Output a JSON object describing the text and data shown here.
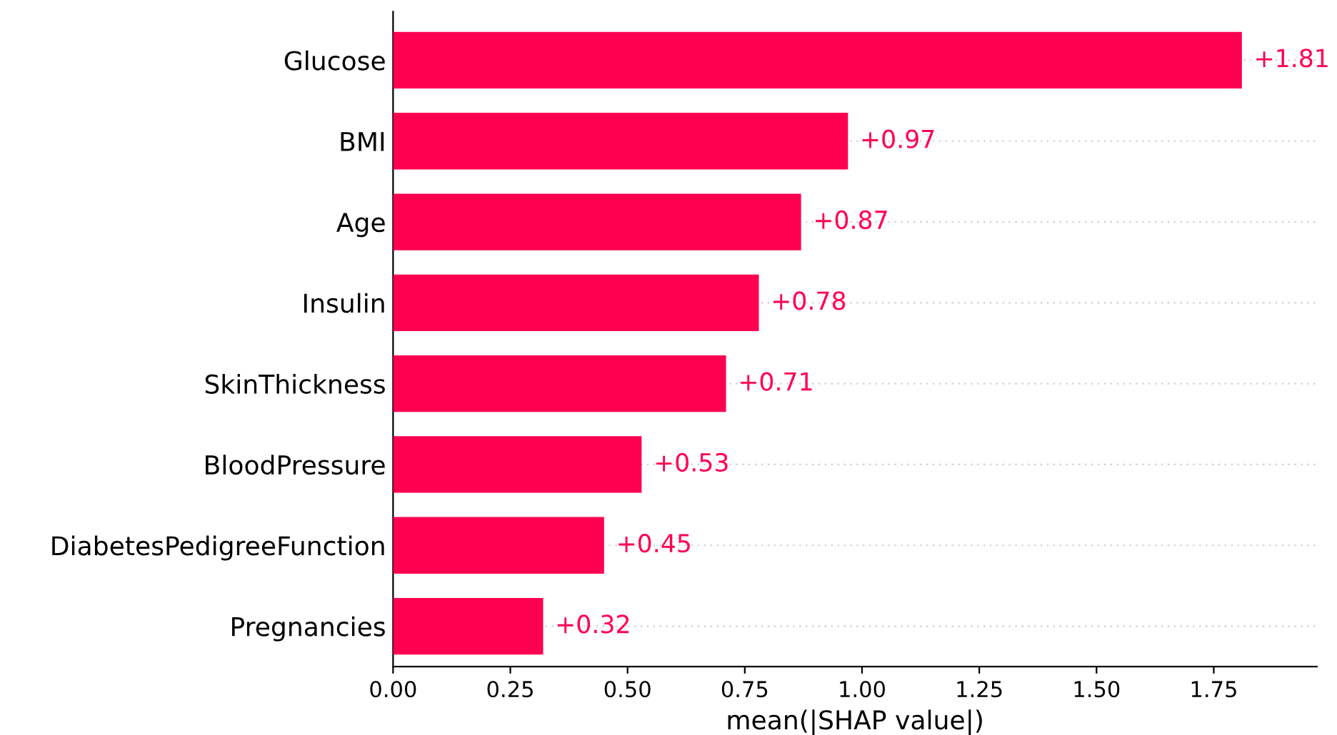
{
  "chart_data": {
    "type": "bar",
    "orientation": "horizontal",
    "xlabel": "mean(|SHAP value|)",
    "categories": [
      "Glucose",
      "BMI",
      "Age",
      "Insulin",
      "SkinThickness",
      "BloodPressure",
      "DiabetesPedigreeFunction",
      "Pregnancies"
    ],
    "values": [
      1.81,
      0.97,
      0.87,
      0.78,
      0.71,
      0.53,
      0.45,
      0.32
    ],
    "value_labels": [
      "+1.81",
      "+0.97",
      "+0.87",
      "+0.78",
      "+0.71",
      "+0.53",
      "+0.45",
      "+0.32"
    ],
    "color": "#ff0051",
    "xlim": [
      0,
      1.97
    ],
    "xticks": [
      {
        "value": 0,
        "label": "0.00"
      },
      {
        "value": 0.25,
        "label": "0.25"
      },
      {
        "value": 0.5,
        "label": "0.50"
      },
      {
        "value": 0.75,
        "label": "0.75"
      },
      {
        "value": 1.0,
        "label": "1.00"
      },
      {
        "value": 1.25,
        "label": "1.25"
      },
      {
        "value": 1.5,
        "label": "1.50"
      },
      {
        "value": 1.75,
        "label": "1.75"
      }
    ],
    "grid": "y",
    "legend": false
  }
}
